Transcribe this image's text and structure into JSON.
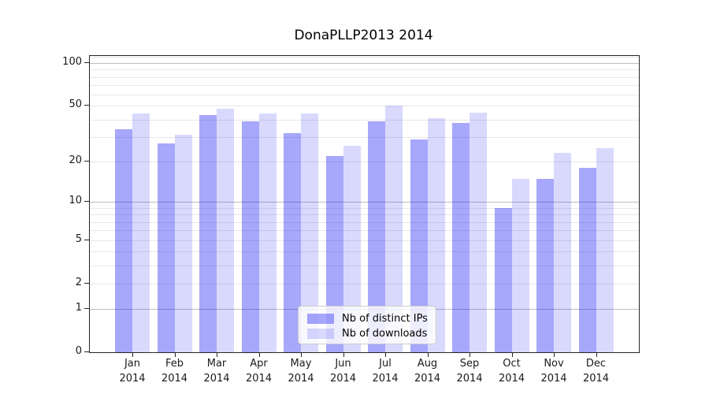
{
  "figure": {
    "title": "DonaPLLP2013 2014",
    "background_color": "#ffffff",
    "text_color": "#1a1a1a"
  },
  "chart_data": {
    "type": "bar",
    "title": "DonaPLLP2013 2014",
    "xlabel": "",
    "ylabel": "",
    "categories": [
      "Jan",
      "Feb",
      "Mar",
      "Apr",
      "May",
      "Jun",
      "Jul",
      "Aug",
      "Sep",
      "Oct",
      "Nov",
      "Dec"
    ],
    "category_year": "2014",
    "series": [
      {
        "name": "Nb of distinct IPs",
        "color": "#a7a7f7",
        "css": "rgba(10,10,245,0.36)",
        "values": [
          34,
          27,
          43,
          39,
          32,
          22,
          39,
          29,
          38,
          9,
          15,
          18
        ]
      },
      {
        "name": "Nb of downloads",
        "color": "#d9d9fc",
        "css": "rgba(10,10,245,0.155)",
        "values": [
          44,
          31,
          48,
          44,
          44,
          26,
          50,
          41,
          45,
          15,
          23,
          25
        ]
      }
    ],
    "yscale": "log1p",
    "ylim": [
      0,
      112
    ],
    "yticks": [
      100,
      50,
      20,
      10,
      5,
      2,
      1,
      0
    ],
    "gridlines": {
      "major": [
        1,
        10,
        100
      ],
      "minor": [
        2,
        3,
        4,
        5,
        6,
        7,
        8,
        9,
        20,
        30,
        40,
        50,
        60,
        70,
        80,
        90,
        110
      ]
    },
    "grid": true,
    "legend_position": "lower center",
    "bar_alpha_note": "bars are translucent; gridlines visible through them"
  }
}
